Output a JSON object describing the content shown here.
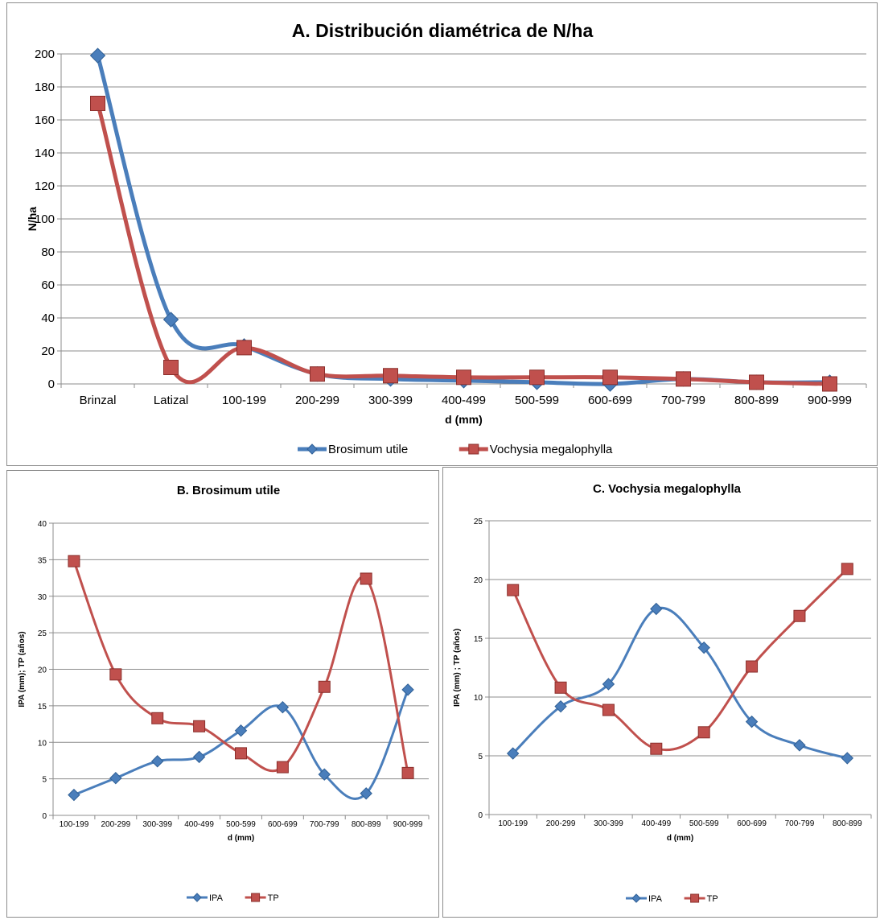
{
  "colors": {
    "blue": "#4a7ebb",
    "red": "#c0504d",
    "grid": "#8c8c8c",
    "axis": "#8c8c8c"
  },
  "chart_data": [
    {
      "id": "a",
      "type": "line",
      "title": "A. Distribución diamétrica de N/ha",
      "xlabel": "d (mm)",
      "ylabel": "N/ha",
      "ylim": [
        0,
        200
      ],
      "yticks": [
        0,
        20,
        40,
        60,
        80,
        100,
        120,
        140,
        160,
        180,
        200
      ],
      "categories": [
        "Brinzal",
        "Latizal",
        "100-199",
        "200-299",
        "300-399",
        "400-499",
        "500-599",
        "600-699",
        "700-799",
        "800-899",
        "900-999"
      ],
      "grid": true,
      "legend": "bottom",
      "series": [
        {
          "name": "Brosimum utile",
          "color": "#4a7ebb",
          "marker": "diamond",
          "values": [
            199,
            39,
            23,
            6,
            3,
            2,
            1,
            0,
            3,
            1,
            1
          ]
        },
        {
          "name": "Vochysia megalophylla",
          "color": "#c0504d",
          "marker": "square",
          "values": [
            170,
            10,
            22,
            6,
            5,
            4,
            4,
            4,
            3,
            1,
            0
          ]
        }
      ]
    },
    {
      "id": "b",
      "type": "line",
      "title": "B. Brosimum utile",
      "xlabel": "d (mm)",
      "ylabel": "IPA (mm); TP (años)",
      "ylim": [
        0,
        40
      ],
      "yticks": [
        0,
        5,
        10,
        15,
        20,
        25,
        30,
        35,
        40
      ],
      "categories": [
        "100-199",
        "200-299",
        "300-399",
        "400-499",
        "500-599",
        "600-699",
        "700-799",
        "800-899",
        "900-999"
      ],
      "grid": true,
      "legend": "bottom",
      "series": [
        {
          "name": "IPA",
          "color": "#4a7ebb",
          "marker": "diamond",
          "values": [
            2.8,
            5.1,
            7.4,
            8.0,
            11.6,
            14.8,
            5.6,
            3.0,
            17.2
          ]
        },
        {
          "name": "TP",
          "color": "#c0504d",
          "marker": "square",
          "values": [
            34.8,
            19.3,
            13.3,
            12.2,
            8.5,
            6.6,
            17.6,
            32.4,
            5.8
          ]
        }
      ]
    },
    {
      "id": "c",
      "type": "line",
      "title": "C. Vochysia megalophylla",
      "xlabel": "d (mm)",
      "ylabel": "IPA (mm) ; TP (años)",
      "ylim": [
        0,
        25
      ],
      "yticks": [
        0,
        5,
        10,
        15,
        20,
        25
      ],
      "categories": [
        "100-199",
        "200-299",
        "300-399",
        "400-499",
        "500-599",
        "600-699",
        "700-799",
        "800-899"
      ],
      "grid": true,
      "legend": "bottom",
      "series": [
        {
          "name": "IPA",
          "color": "#4a7ebb",
          "marker": "diamond",
          "values": [
            5.2,
            9.2,
            11.1,
            17.5,
            14.2,
            7.9,
            5.9,
            4.8
          ]
        },
        {
          "name": "TP",
          "color": "#c0504d",
          "marker": "square",
          "values": [
            19.1,
            10.8,
            8.9,
            5.6,
            7.0,
            12.6,
            16.9,
            20.9
          ]
        }
      ]
    }
  ]
}
